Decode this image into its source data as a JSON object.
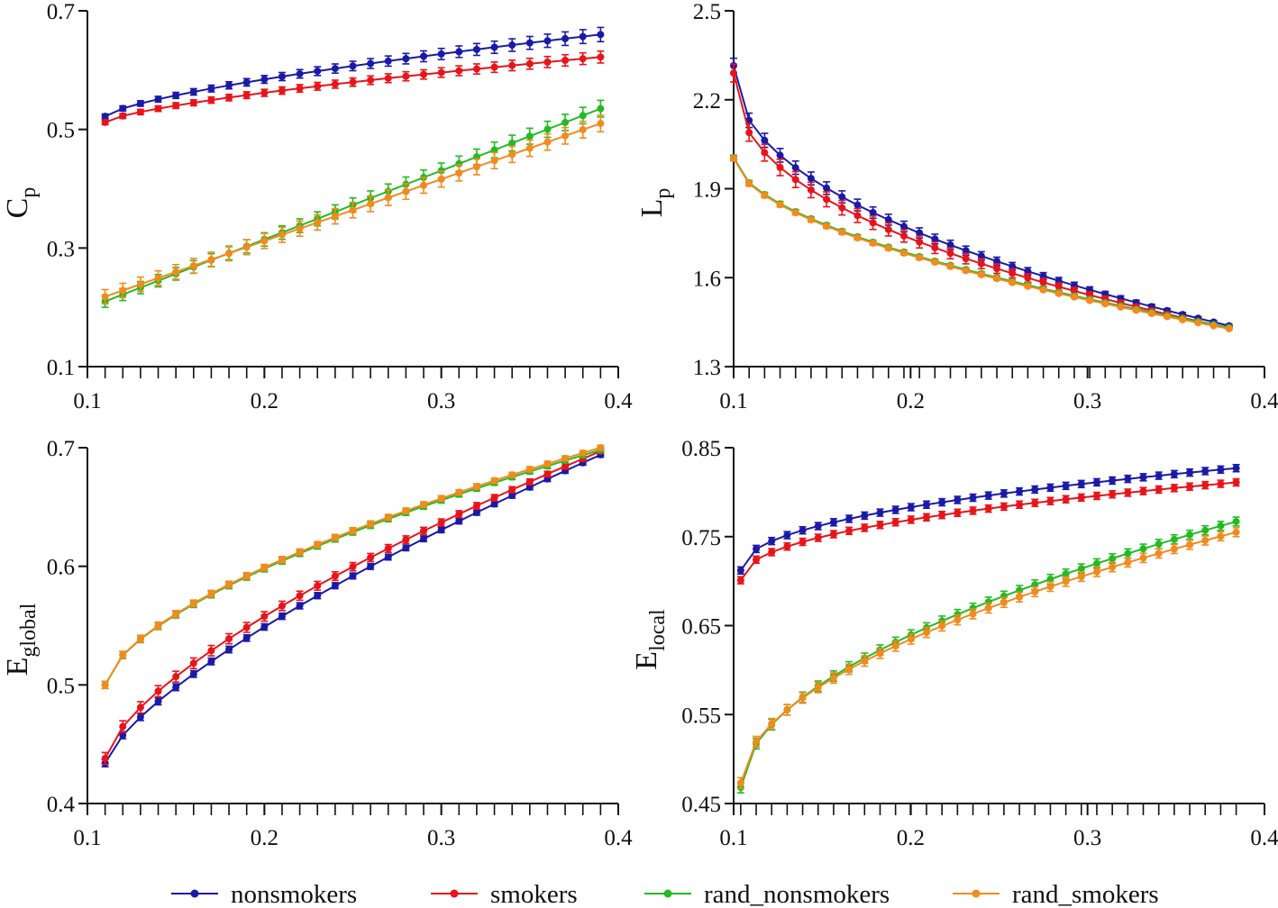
{
  "chart_data": [
    {
      "type": "line",
      "panel": "top-left",
      "ylabel": {
        "main": "C",
        "sub": "p"
      },
      "xlim": [
        0.1,
        0.4
      ],
      "ylim": [
        0.1,
        0.7
      ],
      "xticks": [
        0.1,
        0.2,
        0.3,
        0.4
      ],
      "xtick_labels": [
        "0.1",
        "0.2",
        "0.3",
        "0.4"
      ],
      "yticks": [
        0.1,
        0.3,
        0.5,
        0.7
      ],
      "ytick_labels": [
        "0.1",
        "0.3",
        "0.5",
        "0.7"
      ],
      "x_range": [
        0.11,
        0.39
      ],
      "n_points": 29,
      "series": [
        {
          "key": "nonsmokers",
          "start": 0.522,
          "end": 0.66,
          "shape": 0.7,
          "err_start": 0.004,
          "err_end": 0.012
        },
        {
          "key": "smokers",
          "start": 0.512,
          "end": 0.622,
          "shape": 0.7,
          "err_start": 0.004,
          "err_end": 0.01
        },
        {
          "key": "rand_nonsmokers",
          "start": 0.21,
          "end": 0.535,
          "shape": 1.0,
          "err_start": 0.01,
          "err_end": 0.014
        },
        {
          "key": "rand_smokers",
          "start": 0.218,
          "end": 0.51,
          "shape": 1.0,
          "err_start": 0.012,
          "err_end": 0.014
        }
      ]
    },
    {
      "type": "line",
      "panel": "top-right",
      "ylabel": {
        "main": "L",
        "sub": "p"
      },
      "xlim": [
        0.1,
        0.4
      ],
      "ylim": [
        1.3,
        2.5
      ],
      "xticks": [
        0.1,
        0.2,
        0.3,
        0.4
      ],
      "xtick_labels": [
        "0.1",
        "0.2",
        "0.3",
        "0.4"
      ],
      "yticks": [
        1.3,
        1.6,
        1.9,
        2.2,
        2.5
      ],
      "ytick_labels": [
        "1.3",
        "1.6",
        "1.9",
        "2.2",
        "2.5"
      ],
      "x_range": [
        0.1,
        0.38
      ],
      "n_points": 33,
      "series": [
        {
          "key": "nonsmokers",
          "start": 2.315,
          "end": 1.438,
          "shape": 0.45,
          "err_start": 0.025,
          "err_end": 0.004
        },
        {
          "key": "smokers",
          "start": 2.29,
          "end": 1.43,
          "shape": 0.42,
          "err_start": 0.03,
          "err_end": 0.004
        },
        {
          "key": "rand_nonsmokers",
          "start": 2.005,
          "end": 1.432,
          "shape": 0.55,
          "err_start": 0.008,
          "err_end": 0.003
        },
        {
          "key": "rand_smokers",
          "start": 2.002,
          "end": 1.428,
          "shape": 0.55,
          "err_start": 0.008,
          "err_end": 0.003
        }
      ]
    },
    {
      "type": "line",
      "panel": "bottom-left",
      "ylabel": {
        "main": "E",
        "sub": "global"
      },
      "xlim": [
        0.1,
        0.4
      ],
      "ylim": [
        0.4,
        0.7
      ],
      "xticks": [
        0.1,
        0.2,
        0.3,
        0.4
      ],
      "xtick_labels": [
        "0.1",
        "0.2",
        "0.3",
        "0.4"
      ],
      "yticks": [
        0.4,
        0.5,
        0.6,
        0.7
      ],
      "ytick_labels": [
        "0.4",
        "0.5",
        "0.6",
        "0.7"
      ],
      "x_range": [
        0.11,
        0.39
      ],
      "n_points": 29,
      "series": [
        {
          "key": "nonsmokers",
          "start": 0.434,
          "end": 0.694,
          "shape": 0.72,
          "err_start": 0.003,
          "err_end": 0.002
        },
        {
          "key": "smokers",
          "start": 0.438,
          "end": 0.697,
          "shape": 0.68,
          "err_start": 0.005,
          "err_end": 0.002
        },
        {
          "key": "rand_nonsmokers",
          "start": 0.5,
          "end": 0.698,
          "shape": 0.62,
          "err_start": 0.003,
          "err_end": 0.002
        },
        {
          "key": "rand_smokers",
          "start": 0.5,
          "end": 0.7,
          "shape": 0.62,
          "err_start": 0.003,
          "err_end": 0.002
        }
      ]
    },
    {
      "type": "line",
      "panel": "bottom-right",
      "ylabel": {
        "main": "E",
        "sub": "local"
      },
      "xlim": [
        0.1,
        0.4
      ],
      "ylim": [
        0.45,
        0.85
      ],
      "xticks": [
        0.1,
        0.2,
        0.3,
        0.4
      ],
      "xtick_labels": [
        "0.1",
        "0.2",
        "0.3",
        "0.4"
      ],
      "yticks": [
        0.45,
        0.55,
        0.65,
        0.75,
        0.85
      ],
      "ytick_labels": [
        "0.45",
        "0.55",
        "0.65",
        "0.75",
        "0.85"
      ],
      "x_range": [
        0.104,
        0.384
      ],
      "n_points": 33,
      "series": [
        {
          "key": "nonsmokers",
          "start": 0.712,
          "end": 0.827,
          "shape": 0.45,
          "err_start": 0.004,
          "err_end": 0.004
        },
        {
          "key": "smokers",
          "start": 0.701,
          "end": 0.811,
          "shape": 0.45,
          "err_start": 0.004,
          "err_end": 0.004
        },
        {
          "key": "rand_nonsmokers",
          "start": 0.468,
          "end": 0.767,
          "shape": 0.52,
          "err_start": 0.006,
          "err_end": 0.005
        },
        {
          "key": "rand_smokers",
          "start": 0.473,
          "end": 0.755,
          "shape": 0.52,
          "err_start": 0.006,
          "err_end": 0.005
        }
      ]
    }
  ],
  "legend": {
    "placement": "bottom-center",
    "items": [
      {
        "key": "nonsmokers",
        "label": "nonsmokers",
        "color": "#1a1aa8"
      },
      {
        "key": "smokers",
        "label": "smokers",
        "color": "#e8141a"
      },
      {
        "key": "rand_nonsmokers",
        "label": "rand_nonsmokers",
        "color": "#22bb22"
      },
      {
        "key": "rand_smokers",
        "label": "rand_smokers",
        "color": "#f28a1e"
      }
    ]
  },
  "colors": {
    "nonsmokers": "#1a1aa8",
    "smokers": "#e8141a",
    "rand_nonsmokers": "#22bb22",
    "rand_smokers": "#f28a1e",
    "axis": "#111111"
  }
}
